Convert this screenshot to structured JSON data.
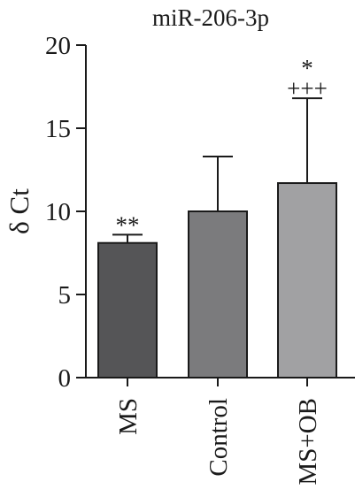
{
  "chart_data": {
    "type": "bar",
    "title": "miR-206-3p",
    "ylabel": "δ Ct",
    "xlabel": "",
    "ylim": [
      0,
      20
    ],
    "yticks": [
      0,
      5,
      10,
      15,
      20
    ],
    "grid": false,
    "categories": [
      "MS",
      "Control",
      "MS+OB"
    ],
    "values": [
      8.1,
      10.0,
      11.7
    ],
    "error_upper": [
      0.5,
      3.3,
      5.1
    ],
    "annotations": [
      [
        "**"
      ],
      [],
      [
        "*",
        "+++"
      ]
    ],
    "colors": [
      "#555557",
      "#7b7b7d",
      "#a1a1a3"
    ]
  }
}
